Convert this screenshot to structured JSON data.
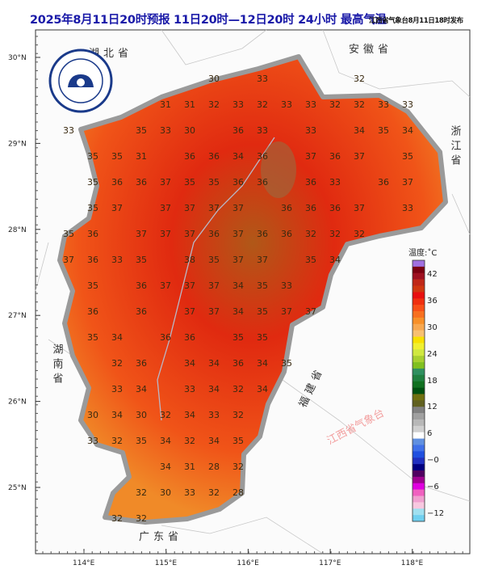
{
  "title": "2025年8月11日20时预报 11日20时—12日20时 24小时  最高气温",
  "issuer": "江西省气象台8月11日18时发布",
  "logo": {
    "text_cn": "江西气象",
    "text_en": "JIANGXI METEOROLOGY"
  },
  "watermark": "江西省气象台",
  "lat_labels": [
    "30°N",
    "29°N",
    "28°N",
    "27°N",
    "26°N",
    "25°N"
  ],
  "lon_labels": [
    "114°E",
    "115°E",
    "116°E",
    "117°E",
    "118°E"
  ],
  "provinces": {
    "hubei": "湖北省",
    "anhui": "安徽省",
    "zhejiang": "浙江省",
    "hunan": "湖南省",
    "fujian": "福建省",
    "guangdong": "广东省"
  },
  "legend": {
    "title": "温度:˚C",
    "labels": [
      "42",
      "36",
      "30",
      "24",
      "18",
      "12",
      "6",
      "−0",
      "−6",
      "−12"
    ],
    "colors": [
      "#a070e0",
      "#7a0010",
      "#9e1020",
      "#c02818",
      "#d03810",
      "#e81010",
      "#f03010",
      "#f85018",
      "#f87020",
      "#f89028",
      "#f8a850",
      "#f8c070",
      "#f8e000",
      "#f0f030",
      "#d0e840",
      "#a8d030",
      "#80c020",
      "#309060",
      "#208040",
      "#107020",
      "#005010",
      "#707010",
      "#606020",
      "#808080",
      "#a0a0a0",
      "#b8b8b8",
      "#d0d0d0",
      "#ffffff",
      "#6090e0",
      "#4070e8",
      "#2050e0",
      "#2030c0",
      "#000080",
      "#500060",
      "#a00090",
      "#e000e0",
      "#f060c0",
      "#f0a0d0",
      "#f8c8e0",
      "#a0e0f0",
      "#70d0f0"
    ]
  },
  "temperature_grid": [
    [
      null,
      null,
      null,
      null,
      null,
      null,
      30,
      null,
      33,
      null,
      null,
      null,
      32,
      null,
      null,
      null
    ],
    [
      null,
      null,
      null,
      null,
      31,
      31,
      32,
      33,
      32,
      33,
      33,
      32,
      32,
      33,
      33,
      null
    ],
    [
      33,
      null,
      null,
      35,
      33,
      30,
      null,
      36,
      33,
      null,
      33,
      null,
      34,
      35,
      34,
      null
    ],
    [
      null,
      35,
      35,
      31,
      null,
      36,
      36,
      34,
      36,
      null,
      37,
      36,
      37,
      null,
      35,
      null
    ],
    [
      null,
      35,
      36,
      36,
      37,
      35,
      35,
      36,
      36,
      null,
      36,
      33,
      null,
      36,
      37,
      null
    ],
    [
      null,
      35,
      37,
      null,
      37,
      37,
      37,
      37,
      null,
      36,
      36,
      36,
      37,
      null,
      33,
      null
    ],
    [
      35,
      36,
      null,
      37,
      37,
      37,
      36,
      37,
      36,
      36,
      32,
      32,
      32,
      null,
      null,
      null
    ],
    [
      37,
      36,
      33,
      35,
      null,
      38,
      35,
      37,
      37,
      null,
      35,
      34,
      null,
      null,
      null,
      null
    ],
    [
      null,
      35,
      null,
      36,
      37,
      37,
      37,
      34,
      35,
      33,
      null,
      null,
      null,
      null,
      null,
      null
    ],
    [
      null,
      36,
      null,
      36,
      null,
      37,
      37,
      34,
      35,
      37,
      37,
      null,
      null,
      null,
      null,
      null
    ],
    [
      null,
      35,
      34,
      null,
      36,
      36,
      null,
      35,
      35,
      null,
      null,
      null,
      null,
      null,
      null,
      null
    ],
    [
      null,
      null,
      32,
      36,
      null,
      34,
      34,
      36,
      34,
      35,
      null,
      null,
      null,
      null,
      null,
      null
    ],
    [
      null,
      null,
      33,
      34,
      null,
      33,
      34,
      32,
      34,
      null,
      null,
      null,
      null,
      null,
      null,
      null
    ],
    [
      null,
      30,
      34,
      30,
      32,
      34,
      33,
      32,
      null,
      null,
      null,
      null,
      null,
      null,
      null,
      null
    ],
    [
      null,
      33,
      32,
      35,
      34,
      32,
      34,
      35,
      null,
      null,
      null,
      null,
      null,
      null,
      null,
      null
    ],
    [
      null,
      null,
      null,
      null,
      34,
      31,
      28,
      32,
      null,
      null,
      null,
      null,
      null,
      null,
      null,
      null
    ],
    [
      null,
      null,
      null,
      32,
      30,
      33,
      32,
      28,
      null,
      null,
      null,
      null,
      null,
      null,
      null,
      null
    ],
    [
      null,
      null,
      32,
      32,
      null,
      null,
      null,
      null,
      null,
      null,
      null,
      null,
      null,
      null,
      null,
      null
    ]
  ]
}
